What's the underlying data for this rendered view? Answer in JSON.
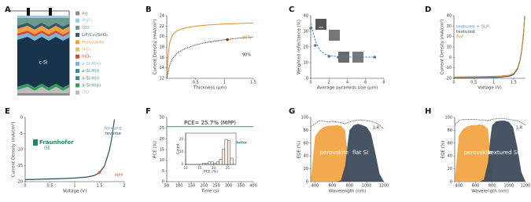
{
  "diagram": {
    "panel": "A",
    "substrate": "c-Si",
    "layers": [
      {
        "name": "Ag",
        "color": "#8c8c8c"
      },
      {
        "name": "MgF₂",
        "color": "#9cc8e2"
      },
      {
        "name": "IZO",
        "color": "#6a9a8a"
      },
      {
        "name": "LiF/C₆₀/SnOₓ",
        "color": "#3a5a6c"
      },
      {
        "name": "Perovskite",
        "color": "#f0a040"
      },
      {
        "name": "NiOₓ",
        "color": "#d8c860"
      },
      {
        "name": "InOₓ",
        "color": "#d04a3c"
      },
      {
        "name": "a-Si:H(n)",
        "color": "#7ab6d8"
      },
      {
        "name": "a-Si:H(i)",
        "color": "#3a8a8a"
      },
      {
        "name": "a-Si:H(i)",
        "color": "#3a8a8a"
      },
      {
        "name": "a-Si:H(p)",
        "color": "#3a9a5a"
      },
      {
        "name": "ITO",
        "color": "#bdbdbd"
      }
    ]
  },
  "chart_data": [
    {
      "type": "line",
      "panel": "B",
      "xlabel": "Thickness (µm)",
      "ylabel": "Current Density (mA/cm²)",
      "xlim": [
        0,
        1.5
      ],
      "xticks": [
        0.5,
        1,
        1.5
      ],
      "ylim": [
        12,
        24
      ],
      "yticks": [
        12,
        14,
        16,
        18,
        20,
        22,
        24
      ],
      "annotations": [
        "95%",
        "90%"
      ],
      "series": [
        {
          "color": "#e8892c",
          "style": "solid",
          "x": [
            0,
            0.02,
            0.05,
            0.1,
            0.15,
            0.2,
            0.3,
            0.5,
            0.7,
            1,
            1.25,
            1.5
          ],
          "values": [
            12,
            16,
            18.8,
            20.3,
            20.9,
            21.2,
            21.6,
            22,
            22.2,
            22.4,
            22.5,
            22.6
          ]
        },
        {
          "color": "#222222",
          "style": "dotted",
          "x": [
            0,
            0.05,
            0.1,
            0.2,
            0.3,
            0.5,
            0.7,
            1,
            1.25,
            1.5
          ],
          "values": [
            12,
            14.5,
            15.8,
            17,
            17.6,
            18.4,
            18.9,
            19.4,
            19.7,
            19.9
          ]
        },
        {
          "color": "#8a3a1a",
          "style": "marker",
          "x": [
            1.05
          ],
          "values": [
            19.4
          ]
        }
      ]
    },
    {
      "type": "line",
      "panel": "C",
      "xlabel": "Average pyramids size (µm)",
      "ylabel": "Weighted reflectance (%)",
      "xlim": [
        0,
        8
      ],
      "xticks": [
        0,
        2,
        4,
        6,
        8
      ],
      "ylim": [
        0,
        40
      ],
      "yticks": [
        0,
        10,
        20,
        30,
        40
      ],
      "series": [
        {
          "color": "#4a7aa0",
          "style": "dashed",
          "x": [
            0,
            0.5,
            1,
            1.5,
            2,
            3,
            4,
            5,
            6,
            7
          ],
          "values": [
            35,
            24,
            18,
            15.5,
            14.5,
            13.8,
            13.6,
            13.5,
            13.5,
            13.5
          ]
        },
        {
          "color": "#4a7aa0",
          "style": "marker",
          "x": [
            0,
            0.5,
            2,
            3,
            7
          ],
          "values": [
            32,
            21,
            14,
            13.5,
            13.5
          ]
        }
      ]
    },
    {
      "type": "line",
      "panel": "D",
      "xlabel": "Voltage (V)",
      "ylabel": "Current Density (mA/cm²)",
      "xlim": [
        0,
        1.8
      ],
      "xticks": [
        0,
        0.5,
        1,
        1.5
      ],
      "ylim": [
        -20,
        40
      ],
      "yticks": [
        -20,
        -10,
        0,
        10,
        20,
        30,
        40
      ],
      "legend": "upper left",
      "x": [
        0,
        0.2,
        0.4,
        0.6,
        0.8,
        1,
        1.2,
        1.4,
        1.5,
        1.6,
        1.65,
        1.7,
        1.75,
        1.78
      ],
      "series": [
        {
          "name": "textured + SLP",
          "color": "#5a8fb8",
          "style": "solid",
          "values": [
            -19.8,
            -19.7,
            -19.6,
            -19.5,
            -19.4,
            -19.2,
            -18.9,
            -18,
            -16.5,
            -11,
            -5,
            5,
            22,
            40
          ]
        },
        {
          "name": "textured",
          "color": "#2d4a5a",
          "style": "solid",
          "values": [
            -19.6,
            -19.5,
            -19.4,
            -19.3,
            -19.2,
            -19,
            -18.7,
            -17.8,
            -16.3,
            -10.8,
            -4.8,
            5,
            22,
            40
          ]
        },
        {
          "name": "flat",
          "color": "#e8892c",
          "style": "solid",
          "values": [
            -18.6,
            -18.5,
            -18.4,
            -18.3,
            -18.2,
            -18,
            -17.7,
            -16.9,
            -15.5,
            -10,
            -4,
            6,
            24,
            40
          ]
        }
      ]
    },
    {
      "type": "line",
      "panel": "E",
      "xlabel": "Voltage (V)",
      "ylabel": "Current Density (mA/cm²)",
      "xlim": [
        0,
        2
      ],
      "xticks": [
        0,
        0.5,
        1,
        1.5,
        2
      ],
      "ylim": [
        -20,
        0
      ],
      "yticks": [
        -20,
        -15,
        -10,
        -5,
        0
      ],
      "legend": "upper right",
      "annotations": [
        "MPP",
        "Fraunhofer",
        "ISE"
      ],
      "x": [
        0,
        0.25,
        0.5,
        0.75,
        1,
        1.25,
        1.4,
        1.5,
        1.6,
        1.7,
        1.75,
        1.8
      ],
      "series": [
        {
          "name": "forward",
          "color": "#5a8fb8",
          "style": "solid",
          "values": [
            -19.3,
            -19.2,
            -19.1,
            -19,
            -18.8,
            -18.5,
            -18,
            -17.1,
            -15,
            -10,
            -6,
            -0.5
          ]
        },
        {
          "name": "reverse",
          "color": "#2d4a5a",
          "style": "solid",
          "values": [
            -19.4,
            -19.3,
            -19.2,
            -19.1,
            -18.9,
            -18.6,
            -18.1,
            -17.2,
            -15.2,
            -10.3,
            -6.3,
            -0.8
          ]
        },
        {
          "color": "#e06030",
          "style": "marker",
          "x": [
            1.5
          ],
          "values": [
            -17.1
          ]
        }
      ]
    },
    {
      "type": "line",
      "panel": "F",
      "xlabel": "Time (s)",
      "ylabel": "PCE (%)",
      "xlim": [
        50,
        400
      ],
      "xticks": [
        50,
        100,
        150,
        200,
        250,
        300,
        350,
        400
      ],
      "ylim": [
        0,
        30
      ],
      "yticks": [
        0,
        5,
        10,
        15,
        20,
        25,
        30
      ],
      "annotations": [
        "PCE= 25.7% (MPP)",
        "Fraunhofer",
        "ISE"
      ],
      "x": [
        50,
        100,
        150,
        200,
        250,
        300,
        350,
        400
      ],
      "series": [
        {
          "color": "#3a8a8a",
          "style": "solid",
          "values": [
            25.7,
            25.7,
            25.7,
            25.7,
            25.7,
            25.7,
            25.7,
            25.7
          ]
        }
      ]
    },
    {
      "type": "histogram",
      "xlabel": "PCE (%)",
      "ylabel": "Count",
      "xlim": [
        10,
        28
      ],
      "xticks": [
        10,
        15,
        20,
        25
      ],
      "ylim": [
        0,
        25
      ],
      "yticks": [
        0,
        10,
        20
      ],
      "bins": [
        16,
        17,
        18,
        19,
        20,
        21,
        22,
        23,
        24,
        25,
        26,
        27
      ],
      "values": [
        1,
        1,
        2,
        2,
        1,
        2,
        4,
        12,
        20,
        19,
        5
      ],
      "color": "#f4ece2"
    },
    {
      "type": "area",
      "panel": "G",
      "xlabel": "Wavelength (nm)",
      "ylabel": "EQE (%)",
      "xlim": [
        350,
        1200
      ],
      "xticks": [
        400,
        600,
        800,
        1000,
        1200
      ],
      "ylim": [
        0,
        100
      ],
      "yticks": [
        0,
        20,
        40,
        60,
        80,
        100
      ],
      "legend": "on marks",
      "x": [
        350,
        400,
        450,
        500,
        550,
        600,
        650,
        700,
        750,
        780,
        800,
        850,
        900,
        950,
        1000,
        1050,
        1100,
        1150,
        1200
      ],
      "series": [
        {
          "name": "perovskite",
          "color": "#f2a445",
          "style": "area",
          "values": [
            0,
            70,
            80,
            85,
            87,
            87,
            88,
            87,
            80,
            40,
            0,
            0,
            0,
            0,
            0,
            0,
            0,
            0,
            0
          ]
        },
        {
          "name": "flat Si",
          "color": "#3d4b5c",
          "style": "area",
          "values": [
            0,
            0,
            0,
            0,
            0,
            0,
            0,
            2,
            25,
            60,
            80,
            88,
            90,
            88,
            85,
            75,
            45,
            12,
            0
          ]
        },
        {
          "name": "1-R",
          "color": "#555555",
          "style": "dotted",
          "values": [
            85,
            90,
            95,
            94,
            93,
            94,
            93,
            92,
            90,
            92,
            93,
            95,
            96,
            96,
            95,
            94,
            92,
            88,
            82
          ]
        }
      ]
    },
    {
      "type": "area",
      "panel": "H",
      "xlabel": "Wavelength (nm)",
      "ylabel": "EQE (%)",
      "xlim": [
        350,
        1200
      ],
      "xticks": [
        400,
        600,
        800,
        1000,
        1200
      ],
      "ylim": [
        0,
        100
      ],
      "yticks": [
        0,
        20,
        40,
        60,
        80,
        100
      ],
      "legend": "on marks",
      "x": [
        350,
        400,
        450,
        500,
        550,
        600,
        650,
        700,
        750,
        780,
        800,
        850,
        900,
        950,
        1000,
        1050,
        1100,
        1150,
        1200
      ],
      "series": [
        {
          "name": "perovskite",
          "color": "#f2a445",
          "style": "area",
          "values": [
            0,
            72,
            82,
            86,
            88,
            88,
            89,
            88,
            82,
            42,
            0,
            0,
            0,
            0,
            0,
            0,
            0,
            0,
            0
          ]
        },
        {
          "name": "textured Si",
          "color": "#3d4b5c",
          "style": "area",
          "values": [
            0,
            0,
            0,
            0,
            0,
            0,
            0,
            3,
            30,
            70,
            88,
            94,
            95,
            95,
            93,
            85,
            55,
            15,
            0
          ]
        },
        {
          "name": "1-R",
          "color": "#555555",
          "style": "dotted",
          "values": [
            88,
            95,
            97,
            97,
            97,
            97,
            96,
            96,
            95,
            96,
            97,
            98,
            98,
            98,
            97,
            96,
            95,
            92,
            88
          ]
        }
      ]
    }
  ]
}
